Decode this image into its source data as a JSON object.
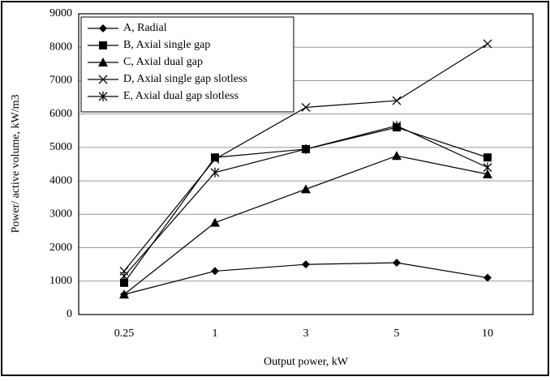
{
  "chart_data": {
    "type": "line",
    "x_label": "Output power, kW",
    "y_label": "Power/ active volume, kW/m3",
    "categories": [
      "0.25",
      "1",
      "3",
      "5",
      "10"
    ],
    "ylim": [
      0,
      9000
    ],
    "yticks": [
      0,
      1000,
      2000,
      3000,
      4000,
      5000,
      6000,
      7000,
      8000,
      9000
    ],
    "grid": true,
    "legend": "top-left",
    "series": [
      {
        "name": "A, Radial",
        "color": "#000000",
        "marker": "diamond",
        "values": [
          600,
          1300,
          1500,
          1550,
          1100
        ]
      },
      {
        "name": "B, Axial single gap",
        "color": "#000000",
        "marker": "square",
        "values": [
          950,
          4700,
          4950,
          5600,
          4700
        ]
      },
      {
        "name": "C, Axial dual gap",
        "color": "#000000",
        "marker": "triangle",
        "values": [
          600,
          2750,
          3750,
          4750,
          4200
        ]
      },
      {
        "name": "D, Axial single gap slotless",
        "color": "#000000",
        "marker": "x",
        "values": [
          1300,
          4650,
          6200,
          6400,
          8100
        ]
      },
      {
        "name": "E, Axial dual gap slotless",
        "color": "#000000",
        "marker": "asterisk",
        "values": [
          1150,
          4250,
          4950,
          5650,
          4400
        ]
      }
    ]
  }
}
